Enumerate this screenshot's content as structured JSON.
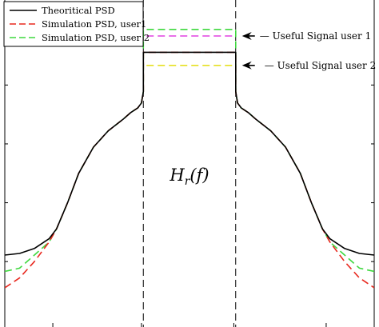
{
  "chart_data": {
    "type": "line",
    "title": "",
    "xlabel": "",
    "ylabel": "",
    "xlim": [
      0,
      1
    ],
    "ylim": [
      0,
      1
    ],
    "x_ticks": [
      0.13,
      0.37,
      0.62,
      0.87
    ],
    "y_ticks": [
      0.2,
      0.38,
      0.56,
      0.74
    ],
    "band_edges": [
      0.375,
      0.625
    ],
    "series": [
      {
        "name": "Theoritical PSD",
        "color": "#000000",
        "dash": "solid",
        "x": [
          0,
          0.04,
          0.08,
          0.12,
          0.14,
          0.17,
          0.2,
          0.24,
          0.28,
          0.32,
          0.34,
          0.36,
          0.37,
          0.372,
          0.375,
          0.375,
          0.625,
          0.625,
          0.628,
          0.63,
          0.64,
          0.66,
          0.68,
          0.72,
          0.76,
          0.8,
          0.83,
          0.86,
          0.88,
          0.92,
          0.96,
          1.0
        ],
        "y": [
          0.22,
          0.225,
          0.24,
          0.27,
          0.3,
          0.38,
          0.47,
          0.55,
          0.6,
          0.635,
          0.655,
          0.67,
          0.685,
          0.7,
          0.72,
          0.84,
          0.84,
          0.72,
          0.7,
          0.685,
          0.67,
          0.655,
          0.635,
          0.6,
          0.55,
          0.47,
          0.38,
          0.3,
          0.27,
          0.24,
          0.225,
          0.22
        ]
      },
      {
        "name": "Simulation PSD, user1",
        "color": "#e8281e",
        "dash": "dashed",
        "x": [
          0,
          0.04,
          0.08,
          0.12,
          0.14,
          0.17,
          0.2,
          0.24,
          0.28,
          0.32,
          0.34,
          0.36,
          0.37,
          0.372,
          0.375,
          0.375,
          0.625,
          0.625,
          0.628,
          0.63,
          0.64,
          0.66,
          0.68,
          0.72,
          0.76,
          0.8,
          0.83,
          0.86,
          0.88,
          0.92,
          0.96,
          1.0
        ],
        "y": [
          0.12,
          0.15,
          0.2,
          0.26,
          0.3,
          0.38,
          0.47,
          0.55,
          0.6,
          0.635,
          0.655,
          0.67,
          0.685,
          0.7,
          0.72,
          0.84,
          0.84,
          0.72,
          0.7,
          0.685,
          0.67,
          0.655,
          0.635,
          0.6,
          0.55,
          0.47,
          0.38,
          0.3,
          0.26,
          0.2,
          0.15,
          0.12
        ]
      },
      {
        "name": "Simulation PSD, user 2",
        "color": "#3fd83f",
        "dash": "dashed",
        "x": [
          0,
          0.04,
          0.08,
          0.12,
          0.14,
          0.17,
          0.2,
          0.24,
          0.28,
          0.32,
          0.34,
          0.36,
          0.37,
          0.372,
          0.375,
          0.375,
          0.625,
          0.625,
          0.628,
          0.63,
          0.64,
          0.66,
          0.68,
          0.72,
          0.76,
          0.8,
          0.83,
          0.86,
          0.88,
          0.92,
          0.96,
          1.0
        ],
        "y": [
          0.17,
          0.18,
          0.22,
          0.26,
          0.3,
          0.38,
          0.47,
          0.55,
          0.6,
          0.635,
          0.655,
          0.67,
          0.685,
          0.7,
          0.72,
          0.91,
          0.91,
          0.72,
          0.7,
          0.685,
          0.67,
          0.655,
          0.635,
          0.6,
          0.55,
          0.47,
          0.38,
          0.3,
          0.26,
          0.22,
          0.18,
          0.17
        ]
      }
    ],
    "useful_levels": [
      {
        "value": 0.89,
        "color": "#e040e0",
        "dash": "dashed"
      },
      {
        "value": 0.8,
        "color": "#e6e020",
        "dash": "dashed"
      }
    ],
    "annotations": [
      {
        "text": "Useful Signal user 1",
        "points_to": 0.89,
        "label_y": 0.89
      },
      {
        "text": "Useful Signal user 2",
        "points_to": 0.8,
        "label_y": 0.8
      }
    ],
    "filter_label": "H_r(f)",
    "legend": "top-left"
  }
}
